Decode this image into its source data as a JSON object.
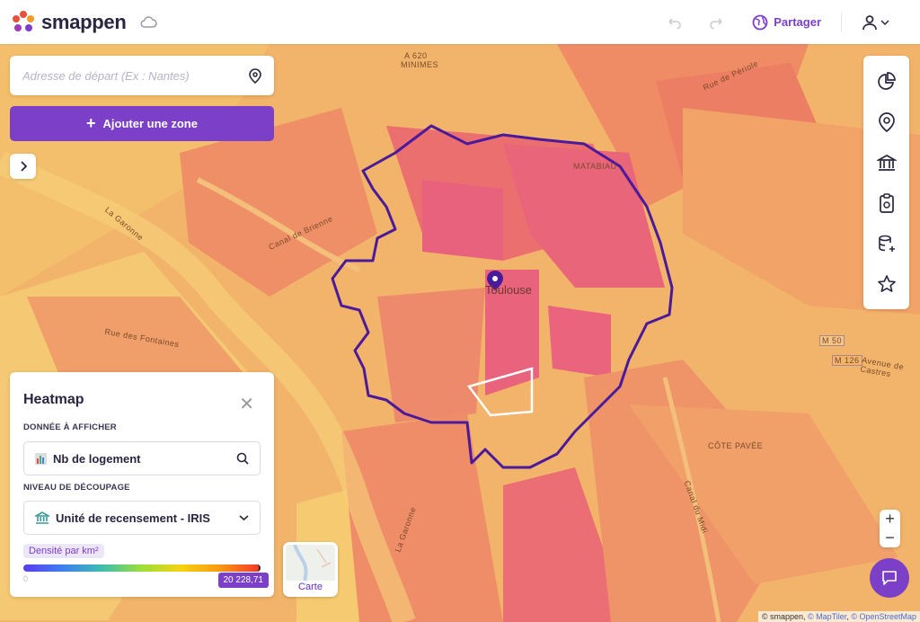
{
  "header": {
    "brand": "smappen",
    "share_label": "Partager",
    "icons": [
      "undo-icon",
      "redo-icon",
      "globe-icon",
      "user-icon"
    ]
  },
  "search": {
    "placeholder": "Adresse de départ (Ex : Nantes)"
  },
  "add_zone": {
    "label": "Ajouter une zone"
  },
  "toolbar": {
    "icons": [
      "pie-chart-icon",
      "map-pin-icon",
      "bank-icon",
      "clipboard-icon",
      "database-add-icon",
      "star-icon"
    ]
  },
  "map": {
    "labels": {
      "minimes": "MINIMES",
      "matabiau": "MATABIAU",
      "city": "Toulouse",
      "garonne1": "La Garonne",
      "garonne2": "La Garonne",
      "brienne": "Canal de Brienne",
      "fontaines": "Rue des Fontaines",
      "cote": "CÔTE PAVÉE",
      "m50": "M 50",
      "m126": "M 126",
      "castres": "Avenue de Castres",
      "periole": "Rue de Périole",
      "midi": "Canal du Midi",
      "a620": "A 620"
    },
    "zone_outline_color": "#4a1a9a",
    "accent": "#7b3fc8"
  },
  "heatmap": {
    "title": "Heatmap",
    "data_label": "DONNÉE À AFFICHER",
    "data_value": "Nb de logement",
    "level_label": "NIVEAU DE DÉCOUPAGE",
    "level_value": "Unité de recensement - IRIS",
    "unit": "Densité par km²",
    "min": "0",
    "max": "20 228,71"
  },
  "basemap": {
    "label": "Carte"
  },
  "zoom": {
    "plus": "+",
    "minus": "−"
  },
  "attribution": {
    "a": "© smappen,",
    "b": "© MapTiler",
    "c": ", ",
    "d": "© OpenStreetMap"
  }
}
